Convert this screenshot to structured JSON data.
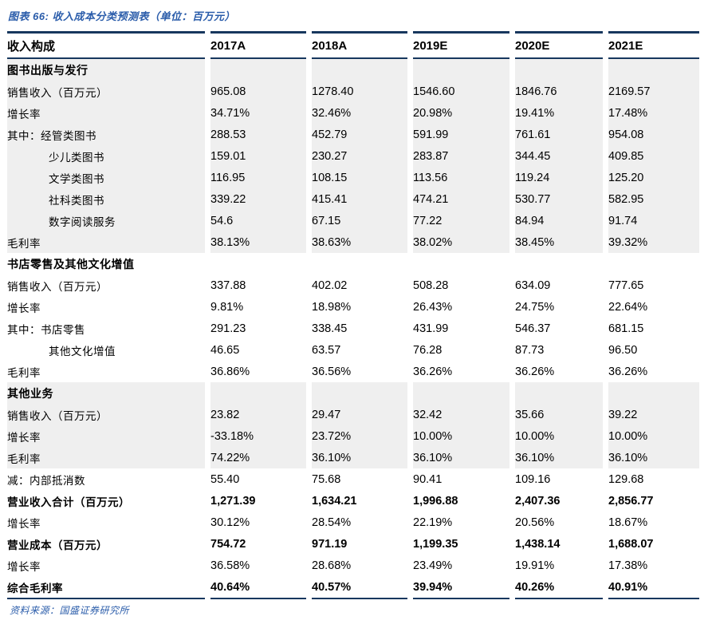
{
  "title": "图表 66:  收入成本分类预测表（单位：百万元）",
  "footer": "资料来源：国盛证券研究所",
  "colors": {
    "caption_blue": "#2a5caa",
    "border_navy": "#17375e",
    "section_shade": "#efefef"
  },
  "table": {
    "columns": [
      "收入构成",
      "2017A",
      "2018A",
      "2019E",
      "2020E",
      "2021E"
    ],
    "rows": [
      {
        "label": "图书出版与发行",
        "section": true,
        "bold": true,
        "indent": false,
        "shaded": true,
        "values": [
          "",
          "",
          "",
          "",
          ""
        ]
      },
      {
        "label": "销售收入（百万元）",
        "section": false,
        "bold": false,
        "indent": false,
        "shaded": true,
        "values": [
          "965.08",
          "1278.40",
          "1546.60",
          "1846.76",
          "2169.57"
        ]
      },
      {
        "label": "增长率",
        "section": false,
        "bold": false,
        "indent": false,
        "shaded": true,
        "values": [
          "34.71%",
          "32.46%",
          "20.98%",
          "19.41%",
          "17.48%"
        ]
      },
      {
        "label": "其中：经管类图书",
        "section": false,
        "bold": false,
        "indent": false,
        "shaded": true,
        "values": [
          "288.53",
          "452.79",
          "591.99",
          "761.61",
          "954.08"
        ]
      },
      {
        "label": "少儿类图书",
        "section": false,
        "bold": false,
        "indent": true,
        "shaded": true,
        "values": [
          "159.01",
          "230.27",
          "283.87",
          "344.45",
          "409.85"
        ]
      },
      {
        "label": "文学类图书",
        "section": false,
        "bold": false,
        "indent": true,
        "shaded": true,
        "values": [
          "116.95",
          "108.15",
          "113.56",
          "119.24",
          "125.20"
        ]
      },
      {
        "label": "社科类图书",
        "section": false,
        "bold": false,
        "indent": true,
        "shaded": true,
        "values": [
          "339.22",
          "415.41",
          "474.21",
          "530.77",
          "582.95"
        ]
      },
      {
        "label": "数字阅读服务",
        "section": false,
        "bold": false,
        "indent": true,
        "shaded": true,
        "values": [
          "54.6",
          "67.15",
          "77.22",
          "84.94",
          "91.74"
        ]
      },
      {
        "label": "毛利率",
        "section": false,
        "bold": false,
        "indent": false,
        "shaded": true,
        "values": [
          "38.13%",
          "38.63%",
          "38.02%",
          "38.45%",
          "39.32%"
        ]
      },
      {
        "label": "书店零售及其他文化增值",
        "section": true,
        "bold": true,
        "indent": false,
        "shaded": false,
        "values": [
          "",
          "",
          "",
          "",
          ""
        ]
      },
      {
        "label": "销售收入（百万元）",
        "section": false,
        "bold": false,
        "indent": false,
        "shaded": false,
        "values": [
          "337.88",
          "402.02",
          "508.28",
          "634.09",
          "777.65"
        ]
      },
      {
        "label": "增长率",
        "section": false,
        "bold": false,
        "indent": false,
        "shaded": false,
        "values": [
          "9.81%",
          "18.98%",
          "26.43%",
          "24.75%",
          "22.64%"
        ]
      },
      {
        "label": "其中：书店零售",
        "section": false,
        "bold": false,
        "indent": false,
        "shaded": false,
        "values": [
          "291.23",
          "338.45",
          "431.99",
          "546.37",
          "681.15"
        ]
      },
      {
        "label": "其他文化增值",
        "section": false,
        "bold": false,
        "indent": true,
        "shaded": false,
        "values": [
          "46.65",
          "63.57",
          "76.28",
          "87.73",
          "96.50"
        ]
      },
      {
        "label": "毛利率",
        "section": false,
        "bold": false,
        "indent": false,
        "shaded": false,
        "values": [
          "36.86%",
          "36.56%",
          "36.26%",
          "36.26%",
          "36.26%"
        ]
      },
      {
        "label": "其他业务",
        "section": true,
        "bold": true,
        "indent": false,
        "shaded": true,
        "values": [
          "",
          "",
          "",
          "",
          ""
        ]
      },
      {
        "label": "销售收入（百万元）",
        "section": false,
        "bold": false,
        "indent": false,
        "shaded": true,
        "values": [
          "23.82",
          "29.47",
          "32.42",
          "35.66",
          "39.22"
        ]
      },
      {
        "label": "增长率",
        "section": false,
        "bold": false,
        "indent": false,
        "shaded": true,
        "values": [
          "-33.18%",
          "23.72%",
          "10.00%",
          "10.00%",
          "10.00%"
        ]
      },
      {
        "label": "毛利率",
        "section": false,
        "bold": false,
        "indent": false,
        "shaded": true,
        "values": [
          "74.22%",
          "36.10%",
          "36.10%",
          "36.10%",
          "36.10%"
        ]
      },
      {
        "label": "减：内部抵消数",
        "section": false,
        "bold": false,
        "indent": false,
        "shaded": false,
        "values": [
          "55.40",
          "75.68",
          "90.41",
          "109.16",
          "129.68"
        ]
      },
      {
        "label": "营业收入合计（百万元）",
        "section": false,
        "bold": true,
        "indent": false,
        "shaded": false,
        "values": [
          "1,271.39",
          "1,634.21",
          "1,996.88",
          "2,407.36",
          "2,856.77"
        ]
      },
      {
        "label": "增长率",
        "section": false,
        "bold": false,
        "indent": false,
        "shaded": false,
        "values": [
          "30.12%",
          "28.54%",
          "22.19%",
          "20.56%",
          "18.67%"
        ]
      },
      {
        "label": "营业成本（百万元）",
        "section": false,
        "bold": true,
        "indent": false,
        "shaded": false,
        "values": [
          "754.72",
          "971.19",
          "1,199.35",
          "1,438.14",
          "1,688.07"
        ]
      },
      {
        "label": "增长率",
        "section": false,
        "bold": false,
        "indent": false,
        "shaded": false,
        "values": [
          "36.58%",
          "28.68%",
          "23.49%",
          "19.91%",
          "17.38%"
        ]
      },
      {
        "label": "综合毛利率",
        "section": false,
        "bold": true,
        "indent": false,
        "shaded": false,
        "values": [
          "40.64%",
          "40.57%",
          "39.94%",
          "40.26%",
          "40.91%"
        ]
      }
    ]
  }
}
